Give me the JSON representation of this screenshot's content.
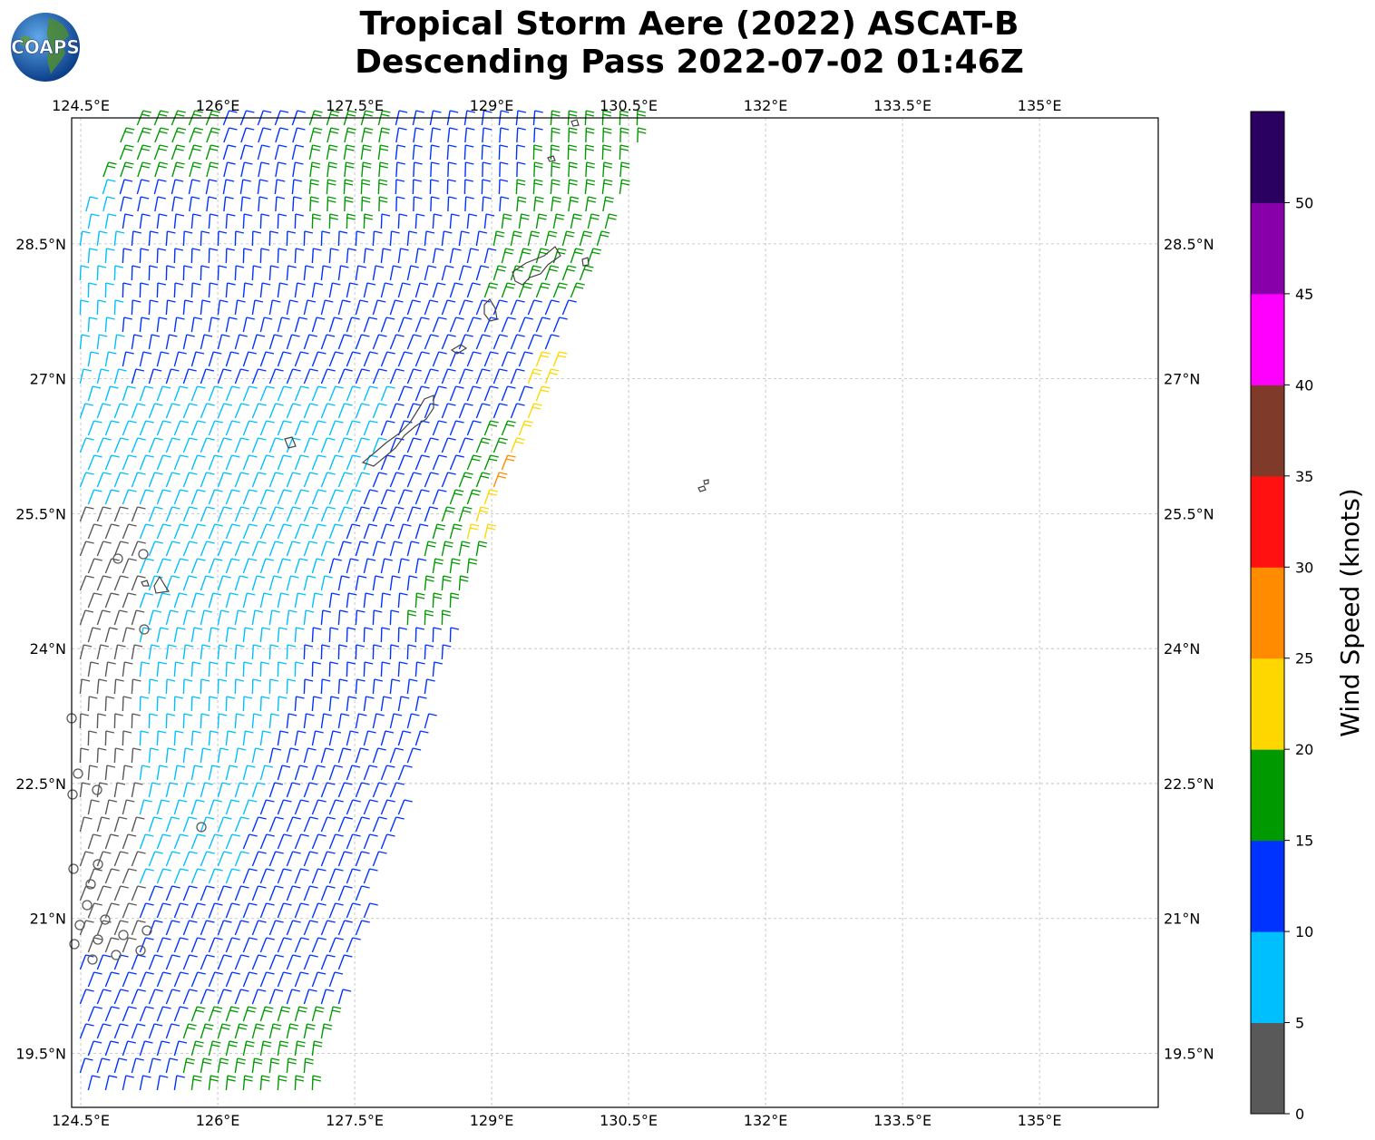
{
  "title_line1": "Tropical Storm Aere (2022) ASCAT-B",
  "title_line2": "Descending Pass 2022-07-02 01:46Z",
  "logo_text": "COAPS",
  "map": {
    "lon_ticks": [
      "124.5°E",
      "126°E",
      "127.5°E",
      "129°E",
      "130.5°E",
      "132°E",
      "133.5°E",
      "135°E"
    ],
    "lat_ticks": [
      "28.5°N",
      "27°N",
      "25.5°N",
      "24°N",
      "22.5°N",
      "21°N",
      "19.5°N"
    ],
    "lon_values": [
      124.5,
      126,
      127.5,
      129,
      130.5,
      132,
      133.5,
      135
    ],
    "lat_values": [
      28.5,
      27,
      25.5,
      24,
      22.5,
      21,
      19.5
    ],
    "extent": {
      "lon_min": 124.4,
      "lon_max": 136.3,
      "lat_min": 18.9,
      "lat_max": 29.9
    }
  },
  "colorbar": {
    "label": "Wind Speed (knots)",
    "ticks": [
      "0",
      "5",
      "10",
      "15",
      "20",
      "25",
      "30",
      "35",
      "40",
      "45",
      "50"
    ],
    "bins": [
      {
        "range": "0-5",
        "color": "#595959"
      },
      {
        "range": "5-10",
        "color": "#00bfff"
      },
      {
        "range": "10-15",
        "color": "#0033ff"
      },
      {
        "range": "15-20",
        "color": "#009900"
      },
      {
        "range": "20-25",
        "color": "#ffd700"
      },
      {
        "range": "25-30",
        "color": "#ff8c00"
      },
      {
        "range": "30-35",
        "color": "#ff1111"
      },
      {
        "range": "35-40",
        "color": "#7f3a2a"
      },
      {
        "range": "40-45",
        "color": "#ff00ff"
      },
      {
        "range": "45-50",
        "color": "#8800aa"
      },
      {
        "range": "50+",
        "color": "#2a0060"
      }
    ]
  }
}
